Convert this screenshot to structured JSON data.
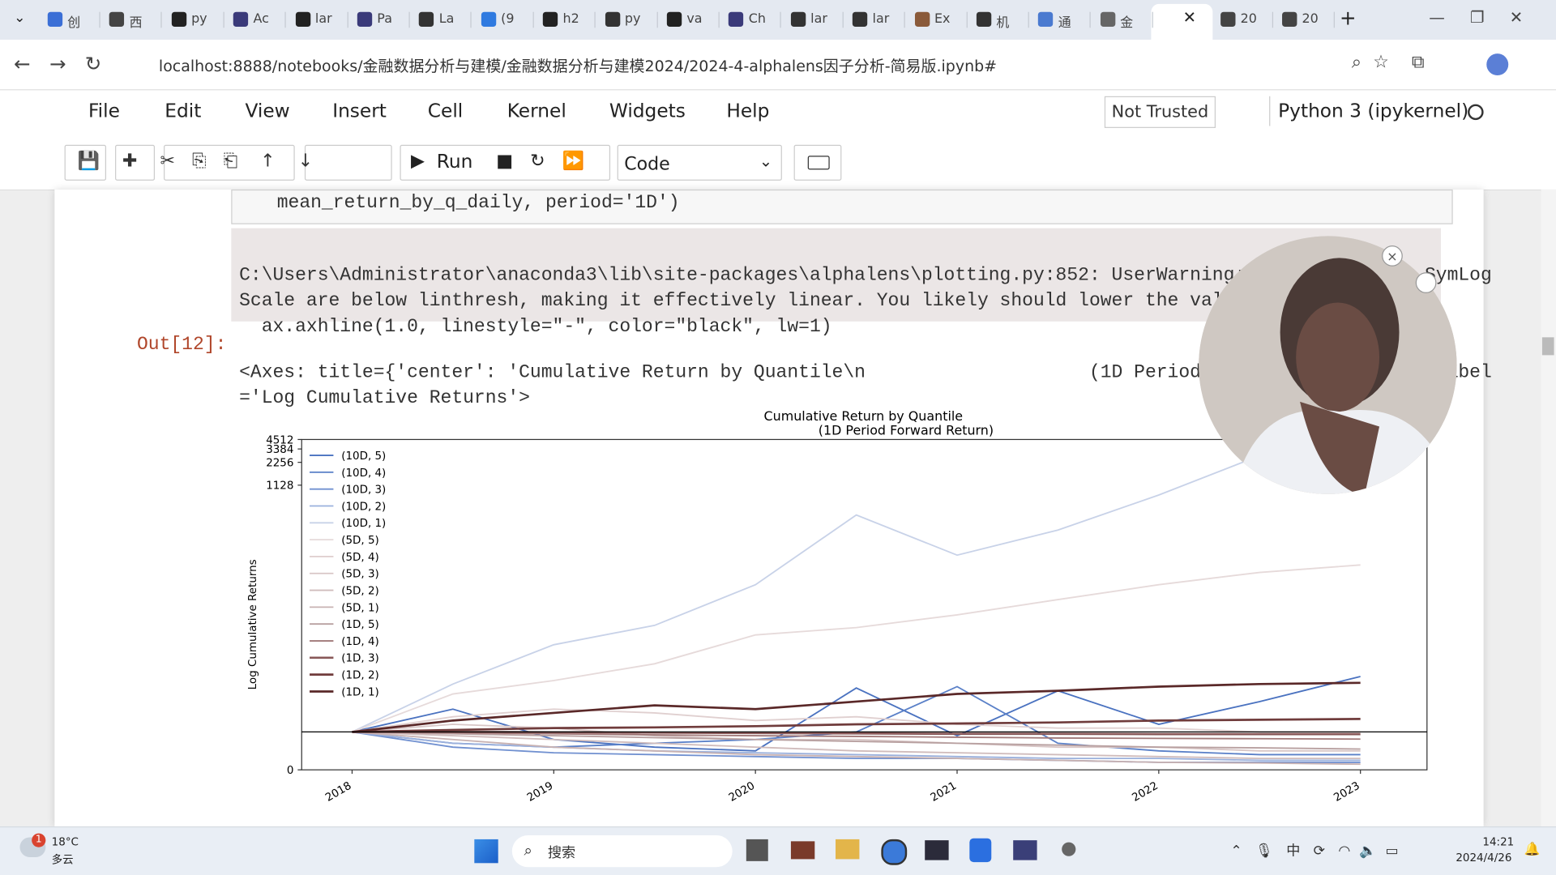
{
  "browser": {
    "tabs": [
      "创",
      "西",
      "py",
      "Ac",
      "lar",
      "Pa",
      "La",
      "(9",
      "h2",
      "py",
      "va",
      "Ch",
      "lar",
      "lar",
      "Ex",
      "机",
      "通",
      "金",
      "20",
      "20"
    ],
    "url": "localhost:8888/notebooks/金融数据分析与建模/金融数据分析与建模2024/2024-4-alphalens因子分析-简易版.ipynb#"
  },
  "jupyter": {
    "menu": [
      "File",
      "Edit",
      "View",
      "Insert",
      "Cell",
      "Kernel",
      "Widgets",
      "Help"
    ],
    "trust": "Not Trusted",
    "kernel": "Python 3 (ipykernel)",
    "toolbar": {
      "run": "Run",
      "cell_type": "Code"
    }
  },
  "cell": {
    "code": "    mean_return_by_q_daily, period='1D')",
    "stderr": [
      "C:\\Users\\Administrator\\anaconda3\\lib\\site-packages\\alphalens\\plotting.py:852: UserWarning: All values for SymLog",
      "Scale are below linthresh, making it effectively linear. You likely should lower the value of linthresh.",
      "  ax.axhline(1.0, linestyle=\"-\", color=\"black\", lw=1)"
    ],
    "prompt": "Out[12]:",
    "output": [
      "<Axes: title={'center': 'Cumulative Return by Quantile\\n                    (1D Period Forward Return)'}, ylabel",
      "='Log Cumulative Returns'>"
    ]
  },
  "chart_data": {
    "type": "line",
    "title": "Cumulative Return by Quantile",
    "subtitle": "(1D Period Forward Return)",
    "y_label": "Log Cumulative Returns",
    "yscale": "symlog",
    "x": [
      2018,
      2018.5,
      2019,
      2019.5,
      2020,
      2020.5,
      2021,
      2021.5,
      2022,
      2022.5,
      2023
    ],
    "xlim": [
      2017.75,
      2023.33
    ],
    "xticks": [
      2018,
      2019,
      2020,
      2021,
      2022,
      2023
    ],
    "ylim": [
      0,
      4512
    ],
    "yticks": [
      0,
      1128,
      2256,
      3384,
      4512
    ],
    "hline": 1,
    "series": [
      {
        "name": "(10D, 5)",
        "color": "#4a72c0",
        "values": [
          1,
          1.6,
          0.8,
          0.6,
          0.5,
          2.4,
          0.9,
          2.2,
          1.2,
          1.8,
          3.4
        ]
      },
      {
        "name": "(10D, 4)",
        "color": "#5a80c8",
        "values": [
          1,
          0.7,
          0.6,
          0.7,
          0.8,
          1.0,
          2.5,
          0.7,
          0.5,
          0.4,
          0.4
        ]
      },
      {
        "name": "(10D, 3)",
        "color": "#7090d0",
        "values": [
          1,
          0.6,
          0.45,
          0.4,
          0.35,
          0.3,
          0.3,
          0.25,
          0.2,
          0.2,
          0.2
        ]
      },
      {
        "name": "(10D, 2)",
        "color": "#9ab0dc",
        "values": [
          1,
          0.7,
          0.6,
          0.5,
          0.45,
          0.4,
          0.35,
          0.3,
          0.3,
          0.25,
          0.25
        ]
      },
      {
        "name": "(10D, 1)",
        "color": "#c8d2e8",
        "values": [
          1,
          2.7,
          8.9,
          16,
          55,
          456,
          135,
          289,
          836,
          2760,
          2000
        ]
      },
      {
        "name": "(5D, 5)",
        "color": "#e6dada",
        "values": [
          1,
          2,
          3,
          5,
          12,
          15,
          22,
          35,
          55,
          80,
          100
        ]
      },
      {
        "name": "(5D, 4)",
        "color": "#e0d0d0",
        "values": [
          1,
          1.4,
          1.6,
          1.5,
          1.3,
          1.4,
          1.2,
          1.1,
          1.1,
          1.0,
          1.0
        ]
      },
      {
        "name": "(5D, 3)",
        "color": "#d8c6c6",
        "values": [
          1,
          1.2,
          1.1,
          0.9,
          0.8,
          0.8,
          0.7,
          0.6,
          0.6,
          0.5,
          0.5
        ]
      },
      {
        "name": "(5D, 2)",
        "color": "#d0bcbc",
        "values": [
          1,
          0.9,
          0.8,
          0.7,
          0.6,
          0.5,
          0.45,
          0.4,
          0.35,
          0.3,
          0.3
        ]
      },
      {
        "name": "(5D, 1)",
        "color": "#c8b2b2",
        "values": [
          1,
          0.8,
          0.6,
          0.5,
          0.4,
          0.35,
          0.3,
          0.25,
          0.2,
          0.18,
          0.15
        ]
      },
      {
        "name": "(1D, 5)",
        "color": "#b8a0a0",
        "values": [
          1,
          0.95,
          0.9,
          0.85,
          0.8,
          0.75,
          0.7,
          0.65,
          0.6,
          0.58,
          0.55
        ]
      },
      {
        "name": "(1D, 4)",
        "color": "#a07878",
        "values": [
          1,
          0.98,
          0.95,
          0.92,
          0.9,
          0.88,
          0.86,
          0.84,
          0.83,
          0.82,
          0.81
        ]
      },
      {
        "name": "(1D, 3)",
        "color": "#885858",
        "values": [
          1,
          1.0,
          0.99,
          0.98,
          0.97,
          0.96,
          0.95,
          0.95,
          0.94,
          0.94,
          0.94
        ]
      },
      {
        "name": "(1D, 2)",
        "color": "#703c3c",
        "values": [
          1,
          1.05,
          1.1,
          1.12,
          1.15,
          1.2,
          1.22,
          1.25,
          1.3,
          1.32,
          1.34
        ]
      },
      {
        "name": "(1D, 1)",
        "color": "#5a2828",
        "values": [
          1,
          1.3,
          1.5,
          1.7,
          1.6,
          1.8,
          2.0,
          2.2,
          2.5,
          2.7,
          2.8
        ]
      }
    ]
  },
  "taskbar": {
    "temperature": "18°C",
    "weather": "多云",
    "badge": "1",
    "search": "搜索",
    "time": "14:21",
    "date": "2024/4/26"
  }
}
